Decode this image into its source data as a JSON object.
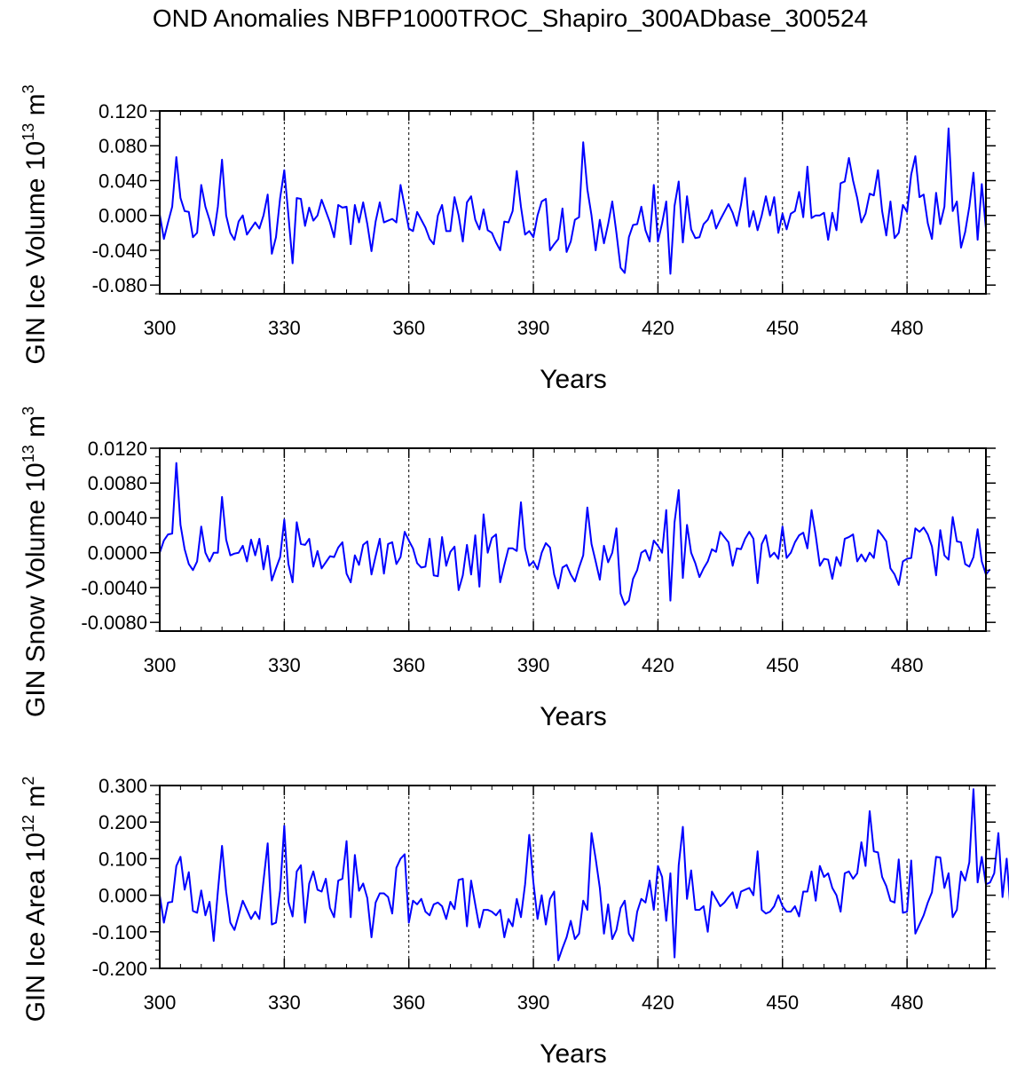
{
  "title": "OND Anomalies NBFP1000TROC_Shapiro_300ADbase_300524",
  "colors": {
    "series": "#0000ff",
    "axis": "#000000",
    "grid": "#000000"
  },
  "chart_data": [
    {
      "type": "line",
      "title": "",
      "ylabel": "GIN Ice Volume",
      "ylabel_unit_base": "10",
      "ylabel_unit_exp": "13",
      "ylabel_unit_m": "m",
      "ylabel_unit_pow": "3",
      "xlabel": "Years",
      "xlim": [
        300,
        499
      ],
      "ylim": [
        -0.09,
        0.12
      ],
      "xticks": [
        300,
        330,
        360,
        390,
        420,
        450,
        480
      ],
      "xtick_labels": [
        "300",
        "330",
        "360",
        "390",
        "420",
        "450",
        "480"
      ],
      "yticks": [
        0.12,
        0.08,
        0.04,
        0.0,
        -0.04,
        -0.08
      ],
      "ytick_labels": [
        "0.120",
        "0.080",
        "0.040",
        "0.000",
        "-0.040",
        "-0.080"
      ],
      "ref_lines_x": [
        330,
        360,
        390,
        420,
        450,
        480
      ],
      "x_start": 300,
      "series": [
        {
          "name": "GIN Ice Volume",
          "values": [
            0.001,
            -0.027,
            -0.008,
            0.01,
            0.067,
            0.02,
            0.005,
            0.004,
            -0.025,
            -0.02,
            0.035,
            0.01,
            -0.005,
            -0.023,
            0.01,
            0.064,
            0.0,
            -0.02,
            -0.028,
            -0.007,
            0.0,
            -0.022,
            -0.015,
            -0.008,
            -0.015,
            0.0,
            0.024,
            -0.044,
            -0.025,
            0.02,
            0.052,
            0.0,
            -0.055,
            0.02,
            0.019,
            -0.012,
            0.009,
            -0.006,
            0.0,
            0.018,
            0.005,
            -0.008,
            -0.025,
            0.012,
            0.009,
            0.01,
            -0.033,
            0.012,
            -0.008,
            0.015,
            -0.01,
            -0.041,
            -0.007,
            0.015,
            -0.008,
            -0.006,
            -0.004,
            -0.008,
            0.035,
            0.01,
            -0.015,
            -0.018,
            0.004,
            -0.005,
            -0.014,
            -0.027,
            -0.033,
            0.0,
            0.012,
            -0.018,
            -0.018,
            0.021,
            0.0,
            -0.03,
            0.015,
            0.022,
            -0.005,
            -0.016,
            0.007,
            -0.017,
            -0.02,
            -0.031,
            -0.04,
            -0.007,
            -0.008,
            0.005,
            0.051,
            0.01,
            -0.022,
            -0.018,
            -0.025,
            0.0,
            0.016,
            0.019,
            -0.04,
            -0.033,
            -0.027,
            0.008,
            -0.042,
            -0.03,
            -0.005,
            -0.002,
            0.084,
            0.03,
            0.0,
            -0.04,
            -0.005,
            -0.032,
            -0.01,
            0.016,
            -0.02,
            -0.06,
            -0.066,
            -0.025,
            -0.011,
            -0.01,
            0.01,
            -0.017,
            -0.03,
            0.035,
            -0.03,
            -0.009,
            0.016,
            -0.067,
            0.011,
            0.039,
            -0.031,
            0.022,
            -0.016,
            -0.026,
            -0.025,
            -0.01,
            -0.005,
            0.006,
            -0.015,
            -0.005,
            0.004,
            0.013,
            0.003,
            -0.012,
            0.012,
            0.043,
            -0.013,
            0.005,
            -0.017,
            0.0,
            0.022,
            0.0,
            0.021,
            -0.02,
            0.002,
            -0.016,
            0.002,
            0.005,
            0.027,
            -0.002,
            0.056,
            -0.003,
            0.0,
            0.0,
            0.003,
            -0.028,
            0.003,
            -0.017,
            0.037,
            0.039,
            0.066,
            0.04,
            0.02,
            -0.008,
            0.002,
            0.025,
            0.023,
            0.052,
            0.005,
            -0.023,
            0.016,
            -0.026,
            -0.02,
            0.012,
            0.004,
            0.047,
            0.068,
            0.021,
            0.024,
            -0.009,
            -0.027,
            0.026,
            -0.01,
            0.01,
            0.1,
            0.005,
            0.016,
            -0.037,
            -0.019,
            0.01,
            0.049,
            -0.028,
            0.036,
            -0.015
          ]
        }
      ]
    },
    {
      "type": "line",
      "title": "",
      "ylabel": "GIN Snow Volume",
      "ylabel_unit_base": "10",
      "ylabel_unit_exp": "13",
      "ylabel_unit_m": "m",
      "ylabel_unit_pow": "3",
      "xlabel": "Years",
      "xlim": [
        300,
        499
      ],
      "ylim": [
        -0.009,
        0.012
      ],
      "xticks": [
        300,
        330,
        360,
        390,
        420,
        450,
        480
      ],
      "xtick_labels": [
        "300",
        "330",
        "360",
        "390",
        "420",
        "450",
        "480"
      ],
      "yticks": [
        0.012,
        0.008,
        0.004,
        0.0,
        -0.004,
        -0.008
      ],
      "ytick_labels": [
        "0.0120",
        "0.0080",
        "0.0040",
        "0.0000",
        "-0.0040",
        "-0.0080"
      ],
      "ref_lines_x": [
        330,
        360,
        390,
        420,
        450,
        480
      ],
      "x_start": 300,
      "series": [
        {
          "name": "GIN Snow Volume",
          "values": [
            0.0,
            0.0014,
            0.0021,
            0.0022,
            0.0103,
            0.0032,
            0.0004,
            -0.0013,
            -0.002,
            -0.001,
            0.003,
            0.0,
            -0.001,
            0.0,
            0.0,
            0.0064,
            0.0015,
            -0.0003,
            -0.0001,
            0.0,
            0.0008,
            -0.001,
            0.0015,
            -0.0003,
            0.0016,
            -0.0019,
            0.0008,
            -0.0032,
            -0.0018,
            -0.0005,
            0.0038,
            -0.0013,
            -0.0034,
            0.0035,
            0.001,
            0.0009,
            0.0016,
            -0.0016,
            0.0002,
            -0.0018,
            -0.0011,
            -0.0004,
            -0.0005,
            0.0006,
            0.0012,
            -0.0024,
            -0.0034,
            -0.0003,
            -0.0014,
            0.0009,
            0.0013,
            -0.0025,
            -0.0004,
            0.0016,
            -0.0024,
            0.001,
            0.0012,
            -0.0013,
            -0.0005,
            0.0024,
            0.0014,
            0.0005,
            -0.0012,
            -0.0017,
            -0.0016,
            0.0016,
            -0.0026,
            -0.0027,
            0.0018,
            -0.0015,
            0.0001,
            0.0007,
            -0.0043,
            -0.0026,
            0.0009,
            -0.0025,
            0.002,
            -0.0039,
            0.0044,
            0.0,
            0.0017,
            0.0021,
            -0.0034,
            -0.0014,
            0.0005,
            0.0005,
            0.0002,
            0.0058,
            0.0005,
            -0.0015,
            -0.001,
            -0.0019,
            0.0,
            0.0011,
            0.0006,
            -0.0025,
            -0.0041,
            -0.0017,
            -0.0014,
            -0.0025,
            -0.0033,
            -0.0017,
            -0.0003,
            0.0052,
            0.001,
            -0.001,
            -0.0031,
            0.0008,
            -0.0011,
            0.0,
            0.0028,
            -0.0047,
            -0.006,
            -0.0055,
            -0.003,
            -0.002,
            0.0,
            0.0003,
            -0.0009,
            0.0014,
            0.0008,
            0.0,
            0.0049,
            -0.0055,
            0.0035,
            0.0072,
            -0.0029,
            0.0032,
            0.0,
            -0.0012,
            -0.0028,
            -0.0018,
            -0.001,
            0.0004,
            0.0001,
            0.0024,
            0.0018,
            0.0012,
            -0.0015,
            0.0005,
            0.0004,
            0.0016,
            0.0024,
            0.0016,
            -0.0035,
            0.001,
            0.002,
            -0.0005,
            0.0,
            -0.0007,
            0.003,
            -0.0006,
            0.0,
            0.0012,
            0.002,
            0.0023,
            0.0005,
            0.0049,
            0.002,
            -0.0015,
            -0.0007,
            -0.0008,
            -0.003,
            -0.0005,
            -0.0015,
            0.0016,
            0.0018,
            0.0021,
            -0.001,
            -0.0002,
            -0.001,
            0.0,
            -0.0006,
            0.0026,
            0.002,
            0.0013,
            -0.0018,
            -0.0025,
            -0.0037,
            -0.001,
            -0.0007,
            -0.0006,
            0.0028,
            0.0024,
            0.0029,
            0.0021,
            0.0007,
            -0.0026,
            0.0026,
            -0.0003,
            -0.0008,
            0.0041,
            0.0013,
            0.0012,
            -0.0013,
            -0.0016,
            -0.0005,
            0.0027,
            -0.001,
            -0.0025,
            -0.0019
          ]
        }
      ]
    },
    {
      "type": "line",
      "title": "",
      "ylabel": "GIN Ice Area",
      "ylabel_unit_base": "10",
      "ylabel_unit_exp": "12",
      "ylabel_unit_m": "m",
      "ylabel_unit_pow": "2",
      "xlabel": "Years",
      "xlim": [
        300,
        499
      ],
      "ylim": [
        -0.2,
        0.3
      ],
      "xticks": [
        300,
        330,
        360,
        390,
        420,
        450,
        480
      ],
      "xtick_labels": [
        "300",
        "330",
        "360",
        "390",
        "420",
        "450",
        "480"
      ],
      "yticks": [
        0.3,
        0.2,
        0.1,
        0.0,
        -0.1,
        -0.2
      ],
      "ytick_labels": [
        "0.300",
        "0.200",
        "0.100",
        "0.000",
        "-0.100",
        "-0.200"
      ],
      "ref_lines_x": [
        330,
        360,
        390,
        420,
        450,
        480
      ],
      "x_start": 300,
      "series": [
        {
          "name": "GIN Ice Area",
          "values": [
            0.0,
            -0.075,
            -0.02,
            -0.018,
            0.08,
            0.105,
            0.015,
            0.063,
            -0.043,
            -0.048,
            0.013,
            -0.055,
            -0.018,
            -0.125,
            0.01,
            0.135,
            0.01,
            -0.075,
            -0.095,
            -0.055,
            -0.015,
            -0.04,
            -0.065,
            -0.045,
            -0.065,
            0.04,
            0.142,
            -0.08,
            -0.075,
            0.013,
            0.19,
            -0.018,
            -0.058,
            0.065,
            0.082,
            -0.075,
            0.032,
            0.065,
            0.015,
            0.01,
            0.045,
            -0.035,
            -0.06,
            0.04,
            0.045,
            0.148,
            -0.06,
            0.11,
            0.012,
            0.032,
            -0.008,
            -0.115,
            -0.02,
            0.005,
            0.005,
            -0.005,
            -0.05,
            0.075,
            0.1,
            0.112,
            -0.075,
            -0.015,
            -0.025,
            -0.01,
            -0.045,
            -0.055,
            -0.025,
            -0.02,
            -0.03,
            -0.065,
            -0.018,
            -0.038,
            0.042,
            0.045,
            -0.085,
            0.04,
            -0.025,
            -0.088,
            -0.04,
            -0.04,
            -0.045,
            -0.055,
            -0.04,
            -0.115,
            -0.065,
            -0.085,
            -0.01,
            -0.06,
            0.03,
            0.165,
            0.035,
            -0.065,
            0.0,
            -0.08,
            -0.01,
            0.01,
            -0.178,
            -0.145,
            -0.115,
            -0.07,
            -0.12,
            -0.105,
            -0.015,
            -0.04,
            0.17,
            0.1,
            0.02,
            -0.105,
            -0.025,
            -0.12,
            -0.095,
            -0.035,
            -0.015,
            -0.105,
            -0.125,
            -0.045,
            -0.01,
            -0.02,
            0.04,
            -0.04,
            0.08,
            0.05,
            -0.07,
            0.06,
            -0.17,
            0.082,
            0.187,
            -0.01,
            0.068,
            -0.04,
            -0.04,
            -0.03,
            -0.1,
            0.01,
            -0.01,
            -0.03,
            -0.02,
            -0.005,
            0.008,
            -0.035,
            0.01,
            0.015,
            0.02,
            0.0,
            0.12,
            -0.04,
            -0.05,
            -0.045,
            -0.03,
            0.0,
            -0.03,
            -0.045,
            -0.045,
            -0.03,
            -0.058,
            0.01,
            0.01,
            0.065,
            -0.015,
            0.08,
            0.05,
            0.06,
            0.02,
            0.0,
            -0.045,
            0.06,
            0.065,
            0.045,
            0.06,
            0.145,
            0.08,
            0.23,
            0.12,
            0.117,
            0.05,
            0.025,
            -0.015,
            -0.02,
            0.098,
            -0.048,
            -0.045,
            0.095,
            -0.105,
            -0.08,
            -0.055,
            -0.02,
            0.008,
            0.105,
            0.103,
            0.02,
            0.06,
            -0.06,
            -0.04,
            0.065,
            0.04,
            0.09,
            0.29,
            0.035,
            0.105,
            0.03,
            0.035,
            0.06,
            0.17,
            -0.005,
            0.1,
            -0.05
          ]
        }
      ]
    }
  ]
}
